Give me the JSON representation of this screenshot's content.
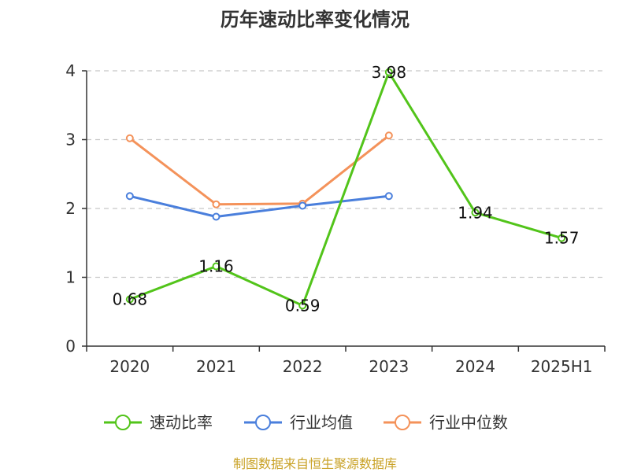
{
  "chart_data": {
    "type": "line",
    "title": "历年速动比率变化情况",
    "categories": [
      "2020",
      "2021",
      "2022",
      "2023",
      "2024",
      "2025H1"
    ],
    "ylim": [
      0,
      4
    ],
    "yticks": [
      0,
      1,
      2,
      3,
      4
    ],
    "grid": true,
    "legend_position": "bottom",
    "series": [
      {
        "name": "速动比率",
        "color": "#52c41a",
        "values": [
          0.68,
          1.16,
          0.59,
          3.98,
          1.94,
          1.57
        ],
        "data_labels": [
          "0.68",
          "1.16",
          "0.59",
          "3.98",
          "1.94",
          "1.57"
        ]
      },
      {
        "name": "行业均值",
        "color": "#4a7fdc",
        "values": [
          2.18,
          1.88,
          2.04,
          2.18,
          null,
          null
        ]
      },
      {
        "name": "行业中位数",
        "color": "#f4925a",
        "values": [
          3.02,
          2.06,
          2.07,
          3.06,
          null,
          null
        ]
      }
    ]
  },
  "footer": {
    "source": "制图数据来自恒生聚源数据库"
  }
}
